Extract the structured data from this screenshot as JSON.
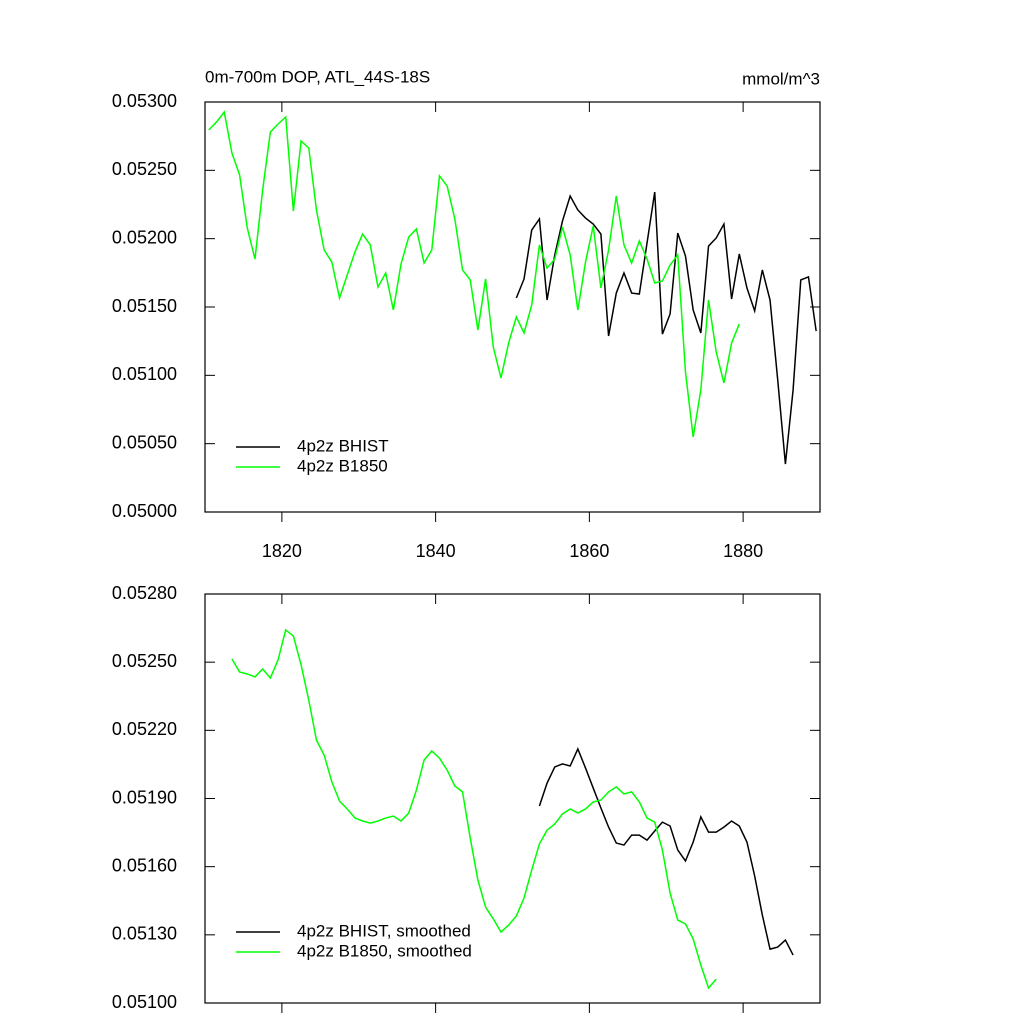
{
  "chart_data": [
    {
      "type": "line",
      "title": "0m-700m DOP, ATL_44S-18S",
      "units": "mmol/m^3",
      "xlim": [
        1810,
        1890
      ],
      "xticks": [
        1820,
        1840,
        1860,
        1880
      ],
      "ylim": [
        0.05,
        0.053
      ],
      "yticks": [
        {
          "value": 0.05,
          "label": "0.05000"
        },
        {
          "value": 0.0505,
          "label": "0.05050"
        },
        {
          "value": 0.051,
          "label": "0.05100"
        },
        {
          "value": 0.0515,
          "label": "0.05150"
        },
        {
          "value": 0.052,
          "label": "0.05200"
        },
        {
          "value": 0.0525,
          "label": "0.05250"
        },
        {
          "value": 0.053,
          "label": "0.05300"
        }
      ],
      "legend": "lower left",
      "series": [
        {
          "name": "4p2z BHIST",
          "color": "#000000",
          "x": [
            1850.5,
            1851.5,
            1852.5,
            1853.5,
            1854.5,
            1855.5,
            1856.5,
            1857.5,
            1858.5,
            1859.5,
            1860.5,
            1861.5,
            1862.5,
            1863.5,
            1864.5,
            1865.5,
            1866.5,
            1867.5,
            1868.5,
            1869.5,
            1870.5,
            1871.5,
            1872.5,
            1873.5,
            1874.5,
            1875.5,
            1876.5,
            1877.5,
            1878.5,
            1879.5,
            1880.5,
            1881.5,
            1882.5,
            1883.5,
            1884.5,
            1885.5,
            1886.5,
            1887.5,
            1888.5,
            1889.5
          ],
          "values": [
            0.051566,
            0.051705,
            0.052063,
            0.052144,
            0.051551,
            0.051881,
            0.052129,
            0.052312,
            0.05221,
            0.052151,
            0.052107,
            0.052034,
            0.051288,
            0.051602,
            0.051749,
            0.051602,
            0.051595,
            0.051968,
            0.052341,
            0.051302,
            0.051449,
            0.052041,
            0.051873,
            0.051478,
            0.05131,
            0.051946,
            0.052005,
            0.052107,
            0.051559,
            0.051888,
            0.051639,
            0.051471,
            0.051771,
            0.051551,
            0.050966,
            0.050351,
            0.050893,
            0.051698,
            0.05172,
            0.051324
          ]
        },
        {
          "name": "4p2z B1850",
          "color": "#00ff00",
          "x": [
            1810.5,
            1811.5,
            1812.5,
            1813.5,
            1814.5,
            1815.5,
            1816.5,
            1817.5,
            1818.5,
            1819.5,
            1820.5,
            1821.5,
            1822.5,
            1823.5,
            1824.5,
            1825.5,
            1826.5,
            1827.5,
            1828.5,
            1829.5,
            1830.5,
            1831.5,
            1832.5,
            1833.5,
            1834.5,
            1835.5,
            1836.5,
            1837.5,
            1838.5,
            1839.5,
            1840.5,
            1841.5,
            1842.5,
            1843.5,
            1844.5,
            1845.5,
            1846.5,
            1847.5,
            1848.5,
            1849.5,
            1850.5,
            1851.5,
            1852.5,
            1853.5,
            1854.5,
            1855.5,
            1856.5,
            1857.5,
            1858.5,
            1859.5,
            1860.5,
            1861.5,
            1862.5,
            1863.5,
            1864.5,
            1865.5,
            1866.5,
            1867.5,
            1868.5,
            1869.5,
            1870.5,
            1871.5,
            1872.5,
            1873.5,
            1874.5,
            1875.5,
            1876.5,
            1877.5,
            1878.5,
            1879.5
          ],
          "values": [
            0.052795,
            0.052854,
            0.052927,
            0.052627,
            0.052466,
            0.052078,
            0.051851,
            0.052356,
            0.05278,
            0.052839,
            0.05289,
            0.052202,
            0.052715,
            0.052663,
            0.05221,
            0.051917,
            0.051829,
            0.051566,
            0.051734,
            0.051902,
            0.052034,
            0.051954,
            0.051646,
            0.051749,
            0.051478,
            0.051815,
            0.052012,
            0.052071,
            0.051822,
            0.051917,
            0.052459,
            0.052385,
            0.052144,
            0.051771,
            0.051698,
            0.051332,
            0.051705,
            0.051207,
            0.050981,
            0.051237,
            0.051427,
            0.05131,
            0.051515,
            0.051954,
            0.051785,
            0.051851,
            0.052085,
            0.051881,
            0.051478,
            0.051829,
            0.052093,
            0.051639,
            0.051917,
            0.052312,
            0.051954,
            0.051822,
            0.051983,
            0.051851,
            0.051676,
            0.05169,
            0.051807,
            0.051881,
            0.051024,
            0.050549,
            0.050893,
            0.051551,
            0.051171,
            0.050944,
            0.051237,
            0.051376
          ]
        }
      ]
    },
    {
      "type": "line",
      "xlim": [
        1810,
        1890
      ],
      "xticks": [
        1820,
        1840,
        1860,
        1880
      ],
      "x_tick_labels": false,
      "ylim": [
        0.051,
        0.0528
      ],
      "yticks": [
        {
          "value": 0.051,
          "label": "0.05100"
        },
        {
          "value": 0.0513,
          "label": "0.05130"
        },
        {
          "value": 0.0516,
          "label": "0.05160"
        },
        {
          "value": 0.0519,
          "label": "0.05190"
        },
        {
          "value": 0.0522,
          "label": "0.05220"
        },
        {
          "value": 0.0525,
          "label": "0.05250"
        },
        {
          "value": 0.0528,
          "label": "0.05280"
        }
      ],
      "legend": "lower left",
      "series": [
        {
          "name": "4p2z BHIST, smoothed",
          "color": "#000000",
          "x": [
            1853.5,
            1854.5,
            1855.5,
            1856.5,
            1857.5,
            1858.5,
            1859.5,
            1860.5,
            1861.5,
            1862.5,
            1863.5,
            1864.5,
            1865.5,
            1866.5,
            1867.5,
            1868.5,
            1869.5,
            1870.5,
            1871.5,
            1872.5,
            1873.5,
            1874.5,
            1875.5,
            1876.5,
            1877.5,
            1878.5,
            1879.5,
            1880.5,
            1881.5,
            1882.5,
            1883.5,
            1884.5,
            1885.5,
            1886.5
          ],
          "values": [
            0.051867,
            0.051968,
            0.052039,
            0.052052,
            0.052043,
            0.052118,
            0.052034,
            0.051946,
            0.051858,
            0.051774,
            0.051704,
            0.051695,
            0.051739,
            0.051739,
            0.051717,
            0.051757,
            0.051796,
            0.051779,
            0.051673,
            0.051625,
            0.051708,
            0.051819,
            0.051752,
            0.051752,
            0.051774,
            0.051801,
            0.051779,
            0.051708,
            0.051559,
            0.051387,
            0.051237,
            0.051246,
            0.051277,
            0.051211
          ]
        },
        {
          "name": "4p2z B1850, smoothed",
          "color": "#00ff00",
          "x": [
            1813.5,
            1814.5,
            1815.5,
            1816.5,
            1817.5,
            1818.5,
            1819.5,
            1820.5,
            1821.5,
            1822.5,
            1823.5,
            1824.5,
            1825.5,
            1826.5,
            1827.5,
            1828.5,
            1829.5,
            1830.5,
            1831.5,
            1832.5,
            1833.5,
            1834.5,
            1835.5,
            1836.5,
            1837.5,
            1838.5,
            1839.5,
            1840.5,
            1841.5,
            1842.5,
            1843.5,
            1844.5,
            1845.5,
            1846.5,
            1847.5,
            1848.5,
            1849.5,
            1850.5,
            1851.5,
            1852.5,
            1853.5,
            1854.5,
            1855.5,
            1856.5,
            1857.5,
            1858.5,
            1859.5,
            1860.5,
            1861.5,
            1862.5,
            1863.5,
            1864.5,
            1865.5,
            1866.5,
            1867.5,
            1868.5,
            1869.5,
            1870.5,
            1871.5,
            1872.5,
            1873.5,
            1874.5,
            1875.5,
            1876.5
          ],
          "values": [
            0.052514,
            0.052457,
            0.052448,
            0.052435,
            0.05247,
            0.05243,
            0.05251,
            0.052642,
            0.052615,
            0.052488,
            0.052333,
            0.052157,
            0.052091,
            0.051973,
            0.051889,
            0.051854,
            0.051814,
            0.051801,
            0.051792,
            0.051801,
            0.051814,
            0.051823,
            0.051801,
            0.051836,
            0.051937,
            0.052069,
            0.052109,
            0.052078,
            0.052025,
            0.051955,
            0.051929,
            0.051726,
            0.051541,
            0.051422,
            0.05137,
            0.051312,
            0.051343,
            0.051383,
            0.051462,
            0.051585,
            0.0517,
            0.051761,
            0.051788,
            0.051832,
            0.051854,
            0.051836,
            0.051854,
            0.051885,
            0.051893,
            0.051929,
            0.051951,
            0.05192,
            0.051929,
            0.051885,
            0.051814,
            0.051796,
            0.051673,
            0.051484,
            0.051365,
            0.051348,
            0.051282,
            0.051167,
            0.051066,
            0.051105
          ]
        }
      ]
    }
  ]
}
